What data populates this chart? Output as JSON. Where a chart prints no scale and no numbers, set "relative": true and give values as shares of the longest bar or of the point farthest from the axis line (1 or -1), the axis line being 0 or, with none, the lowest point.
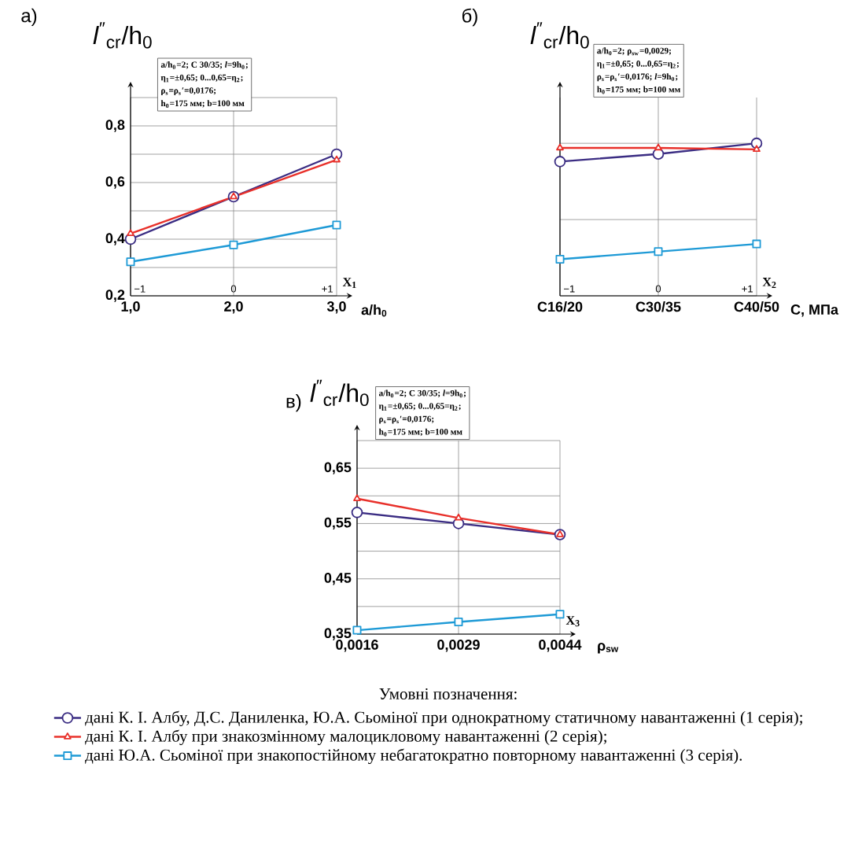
{
  "chart_data": [
    {
      "type": "line",
      "title": "а)",
      "ylabel": "*l*$^{″}$$_{cr}$/h$_{0}$",
      "xlabel": "a/h$_{0}$",
      "legend_title": "Умовні позначення:",
      "legend": "bottom",
      "grid": true,
      "categories": [
        "1,0",
        "2,0",
        "3,0"
      ],
      "ylim": [
        0.2,
        0.9
      ],
      "yticks": [
        {
          "value": 0.2,
          "label": "0,2"
        },
        {
          "value": 0.3,
          "label": null
        },
        {
          "value": 0.4,
          "label": "0,4"
        },
        {
          "value": 0.5,
          "label": null
        },
        {
          "value": 0.6,
          "label": "0,6"
        },
        {
          "value": 0.7,
          "label": null
        },
        {
          "value": 0.8,
          "label": "0,8"
        },
        {
          "value": 0.9,
          "label": null
        }
      ],
      "series": [
        {
          "name": "дані К. І. Албу, Д.С. Даниленка, Ю.А. Сьоміної при однократному статичному навантаженні (1 серія);",
          "color": "#3b2d83",
          "marker": "circle",
          "values": [
            0.4,
            0.55,
            0.7
          ]
        },
        {
          "name": "дані К. І. Албу при знакозмінному малоцикловому навантаженні (2 серія);",
          "color": "#e8302a",
          "marker": "triangle",
          "values": [
            0.42,
            0.55,
            0.68
          ]
        },
        {
          "name": "дані Ю.А. Сьоміної при знакопостійному небагатократно повторному навантаженні (3 серія).",
          "color": "#1e9ad6",
          "marker": "square",
          "values": [
            0.32,
            0.38,
            0.45
          ]
        }
      ],
      "annotations": [
        "a/h$_{0}$=2; C 30/35; *l*=9h$_{0}$;",
        "η$_{1}$=±0,65; 0...0,65=η$_{2}$;",
        "ρ$_{s}$=ρ$_{s}$′=0,0176;",
        "h$_{0}$=175 мм; b=100 мм",
        "X$_{1}$",
        "−1",
        "0",
        "+1"
      ]
    },
    {
      "type": "line",
      "title": "б)",
      "ylabel": "*l*$^{″}$$_{cr}$/h$_{0}$",
      "xlabel": "С, МПа",
      "grid": true,
      "relative": true,
      "categories": [
        "C16/20",
        "C30/35",
        "C40/50"
      ],
      "series": [
        {
          "color": "#3b2d83",
          "marker": "circle",
          "values": [
            0.88,
            0.93,
            1
          ]
        },
        {
          "color": "#e8302a",
          "marker": "triangle",
          "values": [
            0.97,
            0.97,
            0.96
          ]
        },
        {
          "color": "#1e9ad6",
          "marker": "square",
          "values": [
            0.24,
            0.29,
            0.34
          ]
        }
      ],
      "annotations": [
        "a/h$_{0}$=2; ρ$_{sw}$=0,0029;",
        "η$_{1}$=±0,65; 0...0,65=η$_{2}$;",
        "ρ$_{s}$=ρ$_{s}$′=0,0176; *l*=9h$_{0}$;",
        "h$_{0}$=175 мм; b=100 мм",
        "X$_{2}$",
        "−1",
        "0",
        "+1"
      ]
    },
    {
      "type": "line",
      "title": "в)",
      "ylabel": "*l*$^{″}$$_{cr}$/h$_{0}$",
      "xlabel": "ρ$_{sw}$",
      "grid": true,
      "categories": [
        "0,0016",
        "0,0029",
        "0,0044"
      ],
      "ylim": [
        0.35,
        0.7
      ],
      "yticks": [
        {
          "value": 0.35,
          "label": "0,35"
        },
        {
          "value": 0.4,
          "label": null
        },
        {
          "value": 0.45,
          "label": "0,45"
        },
        {
          "value": 0.5,
          "label": null
        },
        {
          "value": 0.55,
          "label": "0,55"
        },
        {
          "value": 0.6,
          "label": null
        },
        {
          "value": 0.65,
          "label": "0,65"
        },
        {
          "value": 0.7,
          "label": null
        }
      ],
      "series": [
        {
          "color": "#3b2d83",
          "marker": "circle",
          "values": [
            0.57,
            0.55,
            0.53
          ]
        },
        {
          "color": "#e8302a",
          "marker": "triangle",
          "values": [
            0.595,
            0.56,
            0.53
          ]
        },
        {
          "color": "#1e9ad6",
          "marker": "square",
          "values": [
            0.357,
            0.372,
            0.386
          ]
        }
      ],
      "annotations": [
        "a/h$_{0}$=2; C 30/35; *l*=9h$_{0}$;",
        "η$_{1}$=±0,65; 0...0,65=η$_{2}$;",
        "ρ$_{s}$=ρ$_{s}$′=0,0176;",
        "h$_{0}$=175 мм; b=100 мм",
        "X$_{3}$"
      ]
    }
  ]
}
